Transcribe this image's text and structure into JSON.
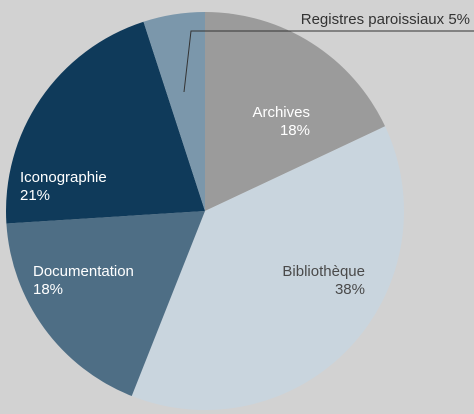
{
  "chart_data": {
    "type": "pie",
    "categories": [
      "Archives",
      "Bibliothèque",
      "Documentation",
      "Iconographie",
      "Registres paroissiaux"
    ],
    "values": [
      18,
      38,
      18,
      21,
      5
    ],
    "value_labels": [
      "18%",
      "38%",
      "18%",
      "21%",
      "5%"
    ],
    "colors": [
      "#9b9b9b",
      "#c9d5de",
      "#4e6e85",
      "#0f3a5a",
      "#7b97ab"
    ]
  }
}
